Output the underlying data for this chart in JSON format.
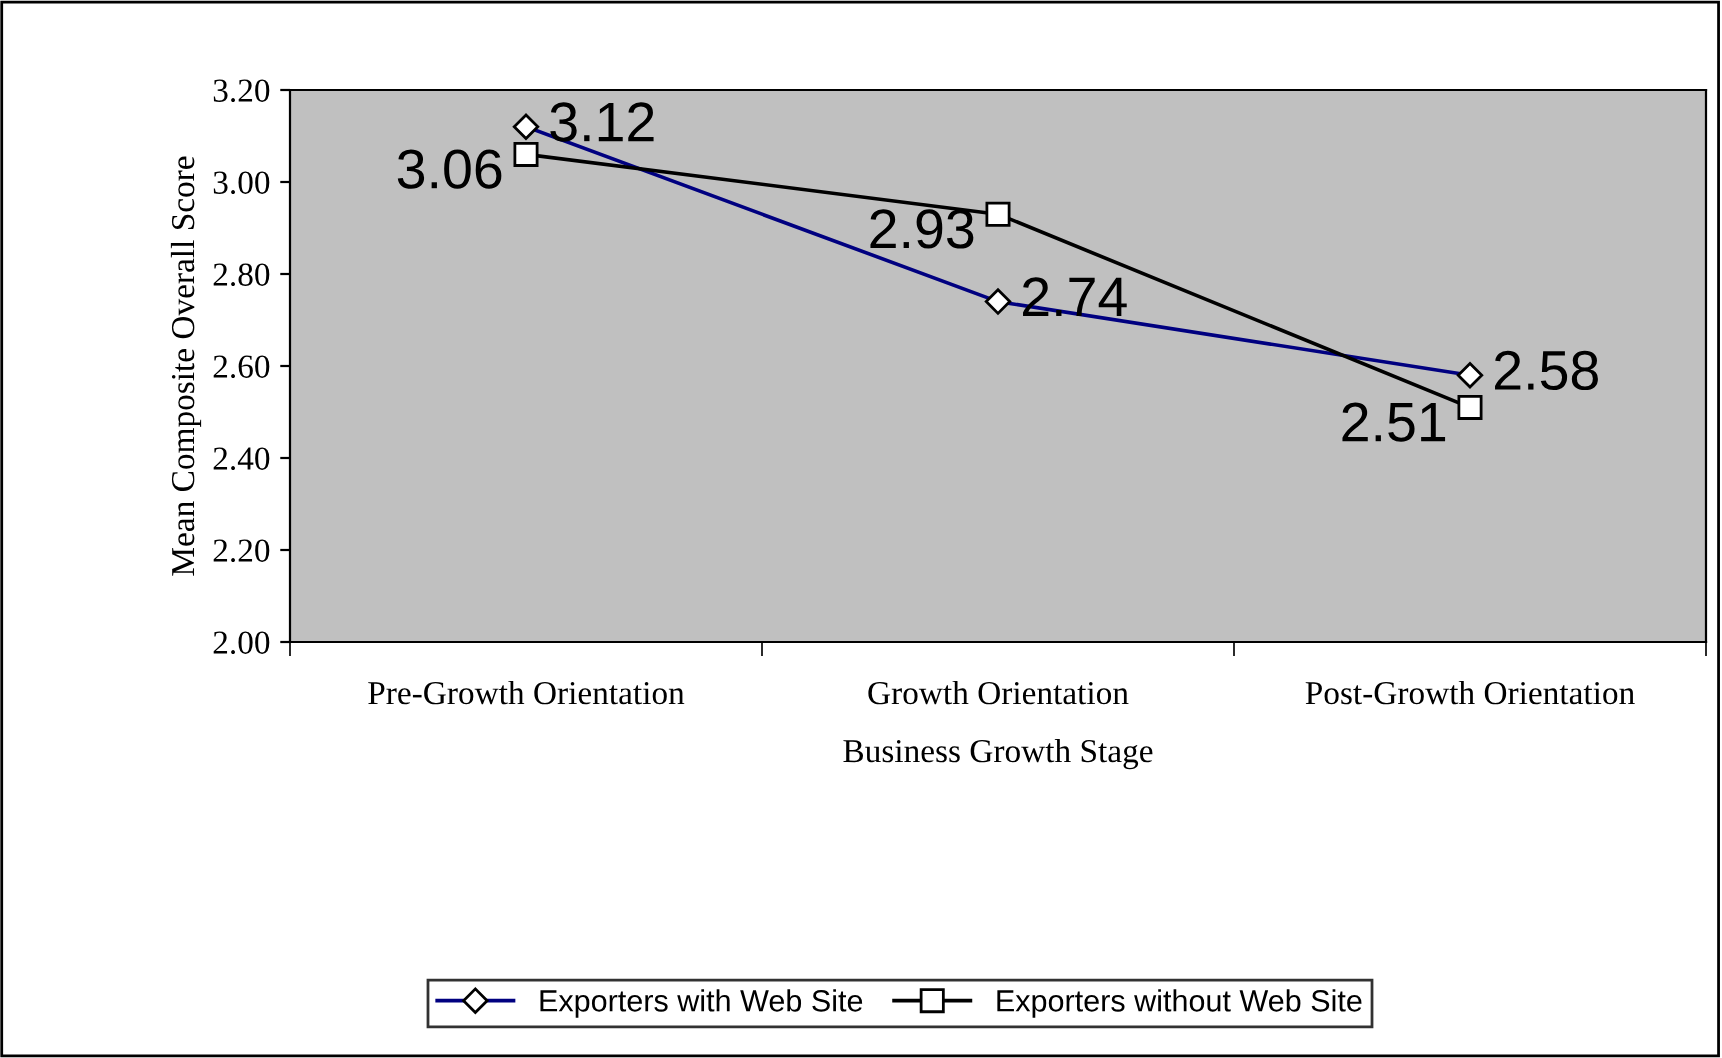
{
  "chart_data": {
    "type": "line",
    "xlabel": "Business Growth Stage",
    "ylabel": "Mean Composite Overall Score",
    "categories": [
      "Pre-Growth Orientation",
      "Growth Orientation",
      "Post-Growth Orientation"
    ],
    "series": [
      {
        "name": "Exporters with Web Site",
        "color": "#000080",
        "marker": "diamond",
        "values": [
          3.12,
          2.74,
          2.58
        ]
      },
      {
        "name": "Exporters without Web Site",
        "color": "#000000",
        "marker": "square",
        "values": [
          3.06,
          2.93,
          2.51
        ]
      }
    ],
    "ylim": [
      2.0,
      3.2
    ],
    "yticks": [
      {
        "value": 2.0,
        "label": "2.00"
      },
      {
        "value": 2.2,
        "label": "2.20"
      },
      {
        "value": 2.4,
        "label": "2.40"
      },
      {
        "value": 2.6,
        "label": "2.60"
      },
      {
        "value": 2.8,
        "label": "2.80"
      },
      {
        "value": 3.0,
        "label": "3.00"
      },
      {
        "value": 3.2,
        "label": "3.20"
      }
    ],
    "data_labels": true,
    "grid": false,
    "legend": "bottom",
    "line_style": "solid"
  }
}
